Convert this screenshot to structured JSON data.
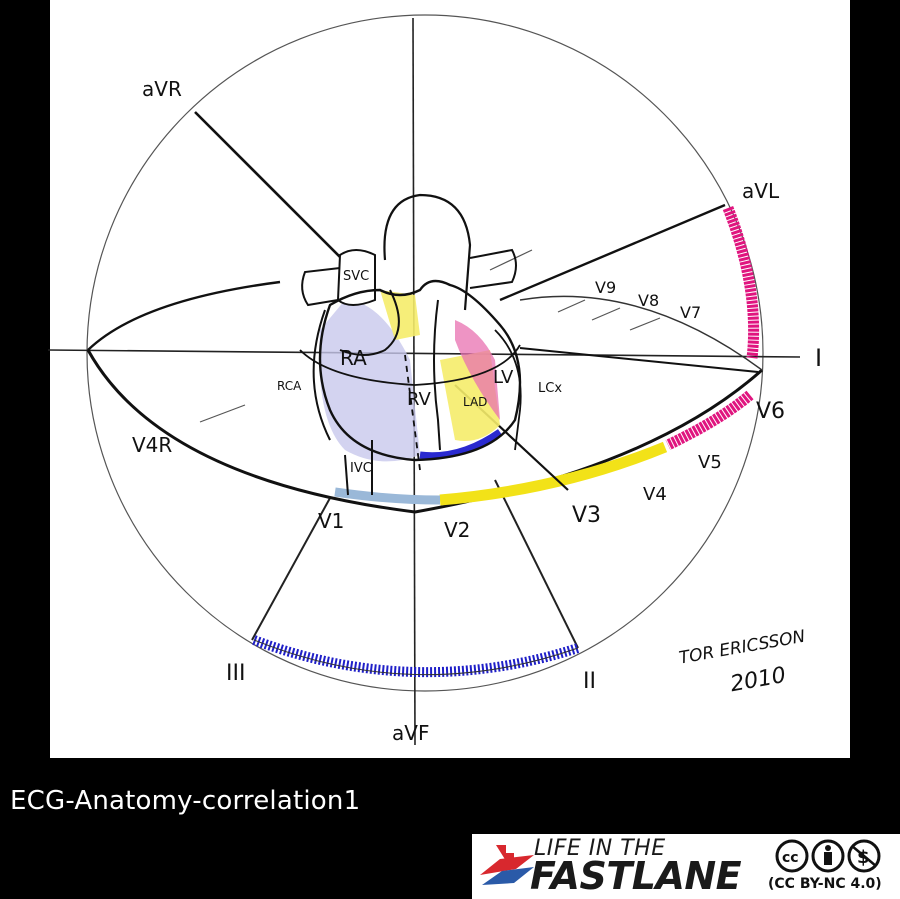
{
  "diagram": {
    "leads": {
      "aVR": "aVR",
      "aVL": "aVL",
      "I": "I",
      "II": "II",
      "III": "III",
      "aVF": "aVF",
      "V1": "V1",
      "V2": "V2",
      "V3": "V3",
      "V4": "V4",
      "V5": "V5",
      "V6": "V6",
      "V4R": "V4R",
      "V7": "V7",
      "V8": "V8",
      "V9": "V9"
    },
    "anatomy": {
      "SVC": "SVC",
      "IVC": "IVC",
      "RA": "RA",
      "RV": "RV",
      "LV": "LV",
      "RCA": "RCA",
      "LAD": "LAD",
      "LCx": "LCx"
    },
    "signature": {
      "name": "TOR ERICSSON",
      "year": "2010"
    },
    "colors": {
      "lateral": "#e0157f",
      "anterior": "#f2e218",
      "inferior": "#1f1fc8",
      "right": "#8f8fd8",
      "septal": "#9ab8d8"
    }
  },
  "caption": "ECG-Anatomy-correlation1",
  "logo": {
    "line1": "LIFE IN THE",
    "line2": "FASTLANE",
    "license": "(CC BY-NC 4.0)",
    "brand_red": "#d8282e",
    "brand_blue": "#2a5aa8"
  }
}
